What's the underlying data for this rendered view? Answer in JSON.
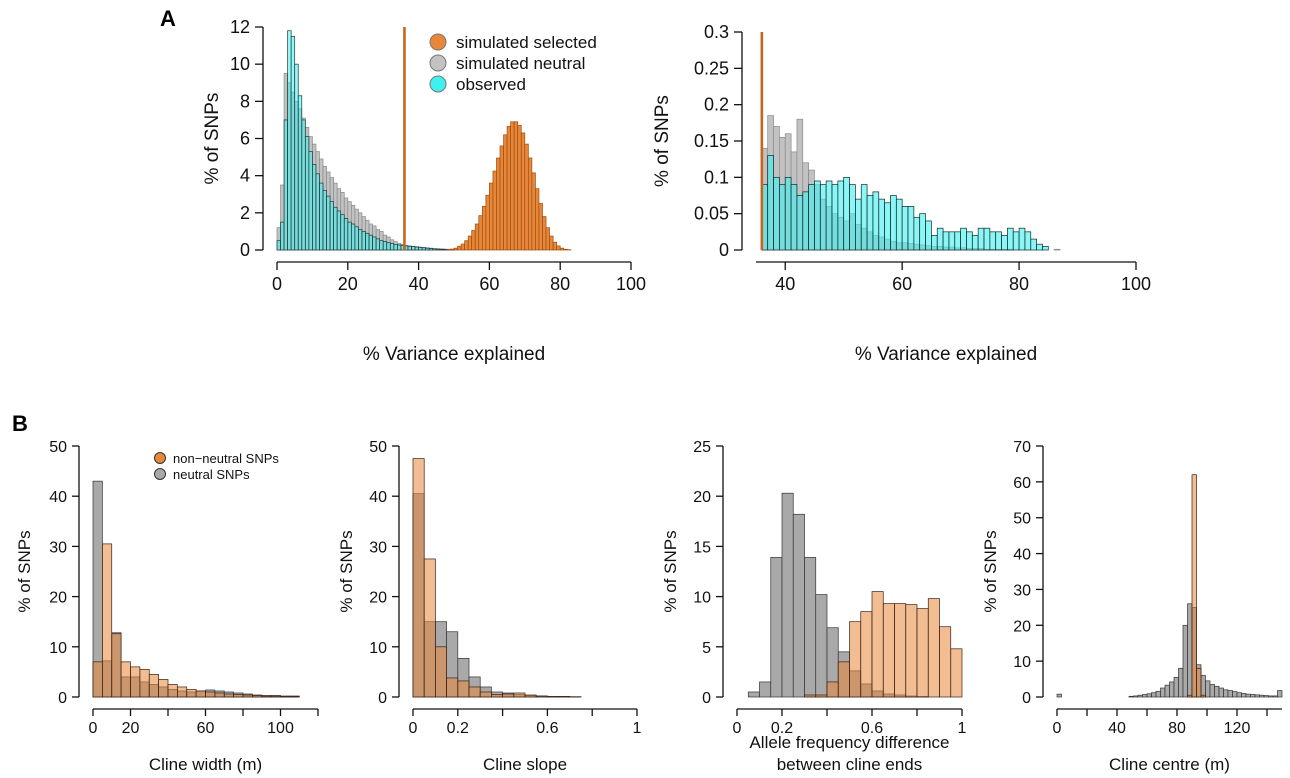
{
  "panel_labels": {
    "a": "A",
    "b": "B"
  },
  "colors": {
    "selected": "#e8873a",
    "neutral": "#c2c2c2",
    "observed": "#3ff0f0",
    "nonneutral_b": "#f0b285",
    "neutral_b": "#a9a9a9",
    "overlap_b": "#b5794d",
    "threshold_line": "#c8641e"
  },
  "chart_data": [
    {
      "type": "bar",
      "panel": "A",
      "ylabel": "% of SNPs",
      "xlabel": "% Variance explained",
      "xlim": [
        0,
        100
      ],
      "ylim": [
        0,
        12
      ],
      "xticks": [
        0,
        20,
        40,
        60,
        80,
        100
      ],
      "yticks": [
        0,
        2,
        4,
        6,
        8,
        10,
        12
      ],
      "threshold": 36,
      "legend": [
        {
          "label": "simulated selected",
          "color": "#e8873a"
        },
        {
          "label": "simulated neutral",
          "color": "#c2c2c2"
        },
        {
          "label": "observed",
          "color": "#3ff0f0"
        }
      ],
      "bin_width": 1,
      "series": [
        {
          "name": "simulated neutral",
          "x0": 0,
          "values": [
            1.2,
            3.5,
            9.5,
            9.0,
            8.5,
            8.0,
            7.6,
            7.1,
            6.6,
            6.1,
            5.7,
            5.3,
            4.9,
            4.5,
            4.2,
            3.9,
            3.6,
            3.3,
            3.1,
            2.8,
            2.6,
            2.4,
            2.2,
            2.0,
            1.8,
            1.6,
            1.4,
            1.3,
            1.1,
            1.0,
            0.8,
            0.7,
            0.55,
            0.45,
            0.35,
            0.3,
            0.25,
            0.22,
            0.2,
            0.18,
            0.16,
            0.14,
            0.12,
            0.1,
            0.08,
            0.07,
            0.06,
            0.05,
            0.04,
            0.03,
            0.02
          ]
        },
        {
          "name": "observed",
          "x0": 0,
          "values": [
            0.5,
            1.5,
            7.0,
            11.8,
            11.5,
            10.0,
            8.3,
            7.0,
            6.1,
            5.3,
            4.6,
            4.1,
            3.6,
            3.2,
            2.9,
            2.6,
            2.3,
            2.1,
            1.9,
            1.7,
            1.5,
            1.4,
            1.25,
            1.1,
            1.0,
            0.9,
            0.8,
            0.7,
            0.6,
            0.5,
            0.45,
            0.4,
            0.35,
            0.3,
            0.27,
            0.25,
            0.22,
            0.2,
            0.18,
            0.16,
            0.14,
            0.12,
            0.1,
            0.08,
            0.06,
            0.05,
            0.04,
            0.03,
            0.02,
            0.01
          ]
        },
        {
          "name": "simulated selected",
          "x0": 48,
          "values": [
            0.03,
            0.05,
            0.1,
            0.2,
            0.32,
            0.5,
            0.75,
            1.05,
            1.4,
            1.85,
            2.35,
            2.95,
            3.6,
            4.25,
            4.95,
            5.6,
            6.2,
            6.65,
            6.9,
            6.9,
            6.7,
            6.3,
            5.7,
            4.95,
            4.15,
            3.3,
            2.5,
            1.8,
            1.2,
            0.75,
            0.42,
            0.22,
            0.1,
            0.04,
            0.02
          ]
        }
      ]
    },
    {
      "type": "bar",
      "panel": "A",
      "ylabel": "% of SNPs",
      "xlabel": "% Variance explained",
      "xlim": [
        35,
        100
      ],
      "ylim": [
        0,
        0.3
      ],
      "xticks": [
        40,
        60,
        80,
        100
      ],
      "yticks": [
        0,
        0.05,
        0.1,
        0.15,
        0.2,
        0.25,
        0.3
      ],
      "ytick_labels": [
        "0",
        "0.05",
        "0.1",
        "0.15",
        "0.2",
        "0.25",
        "0.3"
      ],
      "threshold": 36,
      "bin_width": 1,
      "series": [
        {
          "name": "simulated neutral",
          "x0": 36,
          "values": [
            0.14,
            0.185,
            0.17,
            0.155,
            0.16,
            0.135,
            0.18,
            0.12,
            0.11,
            0.09,
            0.07,
            0.06,
            0.05,
            0.045,
            0.04,
            0.05,
            0.035,
            0.03,
            0.025,
            0.02,
            0.018,
            0.015,
            0.012,
            0.01,
            0.01,
            0.009,
            0.008,
            0.007,
            0.006,
            0.005,
            0.005,
            0.004,
            0.004,
            0.003,
            0.003,
            0.002,
            0.002,
            0.002,
            0.001,
            0.001,
            0.001,
            0.001,
            0.001,
            0.0,
            0.0,
            0.0,
            0.0,
            0.0,
            0.0,
            0.0,
            0.001
          ]
        },
        {
          "name": "observed",
          "x0": 36,
          "values": [
            0.09,
            0.13,
            0.1,
            0.09,
            0.1,
            0.09,
            0.075,
            0.08,
            0.09,
            0.095,
            0.09,
            0.095,
            0.09,
            0.095,
            0.1,
            0.09,
            0.07,
            0.09,
            0.075,
            0.08,
            0.07,
            0.065,
            0.075,
            0.07,
            0.06,
            0.06,
            0.045,
            0.05,
            0.04,
            0.02,
            0.03,
            0.025,
            0.025,
            0.025,
            0.03,
            0.025,
            0.02,
            0.03,
            0.03,
            0.025,
            0.025,
            0.02,
            0.03,
            0.025,
            0.03,
            0.025,
            0.015,
            0.008,
            0.005
          ]
        }
      ]
    },
    {
      "type": "bar",
      "panel": "B",
      "ylabel": "% of SNPs",
      "xlabel": "Cline width (m)",
      "xlim": [
        0,
        120
      ],
      "ylim": [
        0,
        50
      ],
      "xticks": [
        0,
        20,
        60,
        100
      ],
      "xticks_minor": [
        40,
        80,
        120
      ],
      "yticks": [
        0,
        10,
        20,
        30,
        40,
        50
      ],
      "legend": [
        {
          "label": "non−neutral SNPs",
          "color": "#e8873a"
        },
        {
          "label": "neutral SNPs",
          "color": "#a9a9a9"
        }
      ],
      "bin_width": 5,
      "x0": 0,
      "series": [
        {
          "name": "non−neutral SNPs",
          "values": [
            7,
            30.5,
            12.6,
            7,
            6,
            5.5,
            4.5,
            3.5,
            2.5,
            2.0,
            1.5,
            1.2,
            1.0,
            0.8,
            0.6,
            0.5,
            0.4,
            0.3,
            0.2,
            0.2,
            0.1,
            0.1
          ]
        },
        {
          "name": "neutral SNPs",
          "values": [
            43,
            7.2,
            12.8,
            4.0,
            4.0,
            3.0,
            2.5,
            2.0,
            1.5,
            1.2,
            1.0,
            1.2,
            1.4,
            1.2,
            1.0,
            0.8,
            0.6,
            0.4,
            0.3,
            0.3,
            0.2,
            0.2
          ]
        }
      ]
    },
    {
      "type": "bar",
      "panel": "B",
      "ylabel": "% of SNPs",
      "xlabel": "Cline slope",
      "xlim": [
        0,
        1
      ],
      "ylim": [
        0,
        50
      ],
      "xticks": [
        0,
        0.2,
        0.6,
        1
      ],
      "xticks_minor": [
        0.4,
        0.8
      ],
      "xtick_labels": [
        "0",
        "0.2",
        "0.6",
        "1"
      ],
      "yticks": [
        0,
        10,
        20,
        30,
        40,
        50
      ],
      "bin_width": 0.05,
      "x0": 0,
      "series": [
        {
          "name": "non−neutral SNPs",
          "values": [
            47.5,
            27.5,
            10,
            3.8,
            3.2,
            2.0,
            1.0,
            0.5,
            0.6,
            0.8,
            0.4,
            0.2,
            0.1,
            0.1,
            0.05
          ]
        },
        {
          "name": "neutral SNPs",
          "values": [
            40.5,
            15,
            15,
            13,
            7.7,
            4,
            2,
            1.0,
            0.8,
            0.5,
            0.3,
            0.2,
            0.1,
            0.1,
            0.05
          ]
        }
      ]
    },
    {
      "type": "bar",
      "panel": "B",
      "ylabel": "% of SNPs",
      "xlabel": "Allele frequency difference",
      "xlabel2": "between cline ends",
      "xlim": [
        0,
        1
      ],
      "ylim": [
        0,
        25
      ],
      "xticks": [
        0,
        0.2,
        0.6,
        1
      ],
      "xticks_minor": [
        0.4,
        0.8
      ],
      "xtick_labels": [
        "0",
        "0.2",
        "0.6",
        "1"
      ],
      "yticks": [
        0,
        5,
        10,
        15,
        20,
        25
      ],
      "bin_width": 0.05,
      "x0": 0.05,
      "series": [
        {
          "name": "non−neutral SNPs",
          "values": [
            0,
            0,
            0,
            0,
            0,
            0.2,
            0.2,
            1.5,
            3.5,
            7.5,
            8.5,
            10.5,
            9.3,
            9.3,
            9.2,
            8.8,
            9.8,
            7.0,
            4.8,
            1.7
          ]
        },
        {
          "name": "neutral SNPs",
          "values": [
            0.5,
            1.5,
            13.9,
            20.3,
            18.2,
            13.9,
            10.2,
            6.9,
            4.5,
            2.6,
            1.3,
            0.6,
            0.3,
            0.2,
            0.1,
            0.05,
            0,
            0,
            0,
            0
          ]
        }
      ]
    },
    {
      "type": "bar",
      "panel": "B",
      "ylabel": "% of SNPs",
      "xlabel": "Cline centre (m)",
      "xlim": [
        0,
        150
      ],
      "ylim": [
        0,
        70
      ],
      "xticks": [
        0,
        40,
        80,
        120
      ],
      "xticks_minor": [
        20,
        60,
        100,
        140
      ],
      "yticks": [
        0,
        10,
        20,
        30,
        40,
        50,
        60,
        70
      ],
      "bin_width": 3,
      "x0": 0,
      "series": [
        {
          "name": "non−neutral SNPs",
          "values": [
            0,
            0,
            0,
            0,
            0,
            0,
            0,
            0,
            0,
            0,
            0,
            0,
            0,
            0,
            0,
            0,
            0,
            0,
            0,
            0,
            0,
            0,
            0,
            0,
            0,
            0,
            0,
            0,
            0,
            0.5,
            62,
            8,
            0.5,
            0,
            0,
            0,
            0,
            0,
            0,
            0,
            0,
            0,
            0,
            0,
            0,
            0,
            0,
            0,
            0,
            0
          ]
        },
        {
          "name": "neutral SNPs",
          "values": [
            0.8,
            0,
            0,
            0,
            0,
            0,
            0,
            0,
            0,
            0,
            0,
            0,
            0,
            0,
            0,
            0,
            0.2,
            0.3,
            0.5,
            0.7,
            0.9,
            1.2,
            1.6,
            2.5,
            3.3,
            4.2,
            5.5,
            8,
            20,
            26,
            25,
            9,
            6,
            4.5,
            3.5,
            3.0,
            2.5,
            2.0,
            1.8,
            1.5,
            1.2,
            1.0,
            0.8,
            0.7,
            0.6,
            0.5,
            0.4,
            0.3,
            0.3,
            1.8
          ]
        }
      ]
    }
  ]
}
